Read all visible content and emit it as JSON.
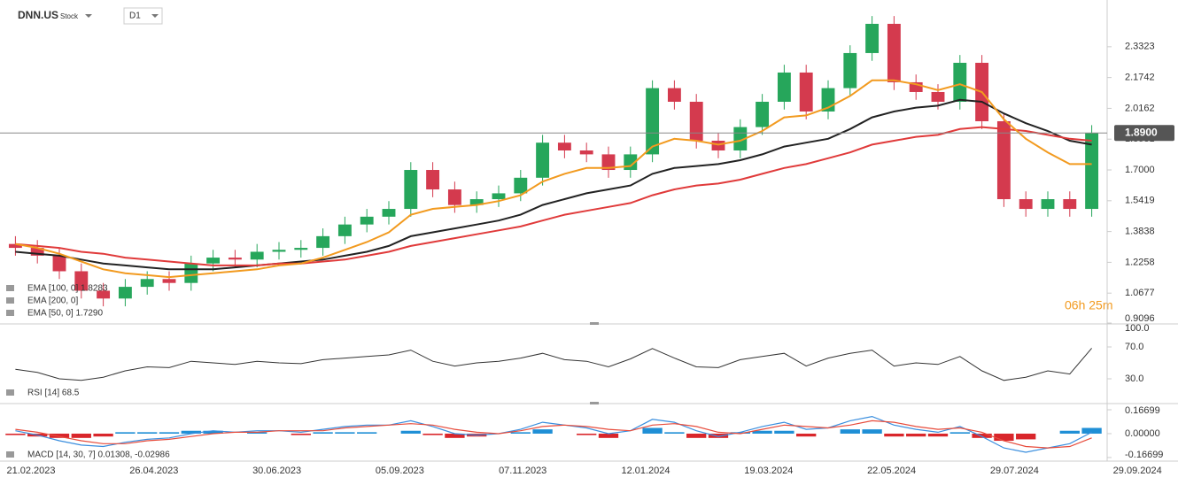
{
  "header": {
    "symbol": "DNN.US",
    "kind": "Stock",
    "timeframe": "D1",
    "countdown": "06h 25m"
  },
  "chart_data": [
    {
      "type": "candlestick",
      "x_axis_labels": [
        "21.02.2023",
        "26.04.2023",
        "30.06.2023",
        "05.09.2023",
        "07.11.2023",
        "12.01.2024",
        "19.03.2024",
        "22.05.2024",
        "29.07.2024",
        "29.09.2024"
      ],
      "open": [
        1.32,
        1.3,
        1.26,
        1.18,
        1.08,
        1.04,
        1.1,
        1.14,
        1.12,
        1.22,
        1.25,
        1.24,
        1.28,
        1.29,
        1.3,
        1.36,
        1.42,
        1.46,
        1.5,
        1.7,
        1.6,
        1.52,
        1.55,
        1.58,
        1.66,
        1.84,
        1.8,
        1.78,
        1.7,
        1.78,
        2.12,
        2.05,
        1.85,
        1.8,
        1.92,
        2.05,
        2.2,
        2.0,
        2.12,
        2.3,
        2.45,
        2.15,
        2.1,
        2.05,
        2.25,
        1.95,
        1.55,
        1.5,
        1.55,
        1.5
      ],
      "high": [
        1.36,
        1.34,
        1.3,
        1.22,
        1.12,
        1.14,
        1.18,
        1.18,
        1.26,
        1.29,
        1.29,
        1.32,
        1.33,
        1.34,
        1.4,
        1.46,
        1.5,
        1.54,
        1.74,
        1.74,
        1.64,
        1.59,
        1.62,
        1.7,
        1.88,
        1.88,
        1.84,
        1.82,
        1.82,
        2.16,
        2.16,
        2.09,
        1.89,
        1.96,
        2.09,
        2.24,
        2.24,
        2.16,
        2.34,
        2.49,
        2.49,
        2.19,
        2.14,
        2.29,
        2.29,
        1.99,
        1.59,
        1.59,
        1.59,
        1.93
      ],
      "low": [
        1.26,
        1.22,
        1.14,
        1.04,
        1.0,
        1.0,
        1.06,
        1.08,
        1.08,
        1.18,
        1.2,
        1.2,
        1.24,
        1.25,
        1.26,
        1.32,
        1.38,
        1.42,
        1.46,
        1.56,
        1.48,
        1.48,
        1.51,
        1.54,
        1.62,
        1.76,
        1.74,
        1.66,
        1.66,
        1.74,
        2.01,
        1.81,
        1.76,
        1.76,
        1.88,
        2.01,
        1.96,
        1.96,
        2.08,
        2.26,
        2.11,
        2.06,
        2.01,
        2.01,
        1.91,
        1.51,
        1.46,
        1.46,
        1.46,
        1.46
      ],
      "close": [
        1.3,
        1.26,
        1.18,
        1.08,
        1.04,
        1.1,
        1.14,
        1.12,
        1.22,
        1.25,
        1.24,
        1.28,
        1.29,
        1.3,
        1.36,
        1.42,
        1.46,
        1.5,
        1.7,
        1.6,
        1.52,
        1.55,
        1.58,
        1.66,
        1.84,
        1.8,
        1.78,
        1.7,
        1.78,
        2.12,
        2.05,
        1.85,
        1.8,
        1.92,
        2.05,
        2.2,
        2.0,
        2.12,
        2.3,
        2.45,
        2.15,
        2.1,
        2.05,
        2.25,
        1.95,
        1.55,
        1.5,
        1.55,
        1.5,
        1.89
      ],
      "up_color": "#26a65b",
      "down_color": "#d43a4e",
      "series": [
        {
          "name": "EMA [100, 0] 1.8283",
          "color": "#222222",
          "values": [
            1.28,
            1.27,
            1.26,
            1.24,
            1.22,
            1.21,
            1.2,
            1.19,
            1.19,
            1.19,
            1.2,
            1.21,
            1.22,
            1.23,
            1.24,
            1.26,
            1.28,
            1.31,
            1.36,
            1.38,
            1.4,
            1.42,
            1.44,
            1.47,
            1.52,
            1.55,
            1.58,
            1.6,
            1.62,
            1.68,
            1.71,
            1.72,
            1.73,
            1.75,
            1.78,
            1.82,
            1.84,
            1.86,
            1.91,
            1.97,
            2.0,
            2.02,
            2.03,
            2.06,
            2.05,
            1.99,
            1.94,
            1.9,
            1.85,
            1.83
          ]
        },
        {
          "name": "EMA [200, 0]",
          "color": "#e03a3a",
          "values": [
            1.32,
            1.31,
            1.3,
            1.28,
            1.27,
            1.25,
            1.24,
            1.23,
            1.22,
            1.21,
            1.21,
            1.21,
            1.22,
            1.22,
            1.23,
            1.24,
            1.26,
            1.28,
            1.31,
            1.33,
            1.35,
            1.37,
            1.39,
            1.41,
            1.44,
            1.47,
            1.49,
            1.51,
            1.53,
            1.57,
            1.6,
            1.62,
            1.63,
            1.65,
            1.68,
            1.71,
            1.73,
            1.76,
            1.79,
            1.83,
            1.85,
            1.87,
            1.88,
            1.91,
            1.92,
            1.91,
            1.9,
            1.88,
            1.86,
            1.85
          ]
        },
        {
          "name": "EMA [50, 0] 1.7290",
          "color": "#f29a1f",
          "values": [
            1.32,
            1.3,
            1.27,
            1.23,
            1.19,
            1.17,
            1.16,
            1.15,
            1.16,
            1.17,
            1.18,
            1.19,
            1.21,
            1.22,
            1.25,
            1.29,
            1.33,
            1.38,
            1.47,
            1.5,
            1.51,
            1.52,
            1.54,
            1.57,
            1.64,
            1.68,
            1.71,
            1.71,
            1.72,
            1.82,
            1.86,
            1.85,
            1.83,
            1.85,
            1.9,
            1.97,
            1.98,
            2.02,
            2.08,
            2.16,
            2.16,
            2.14,
            2.11,
            2.14,
            2.1,
            1.96,
            1.86,
            1.79,
            1.73,
            1.73
          ]
        }
      ],
      "last_price": {
        "value": 1.89,
        "label": "1.8900"
      },
      "ylim": [
        0.9096,
        2.536
      ],
      "yticks": [
        {
          "value": 2.3323,
          "label": "2.3323"
        },
        {
          "value": 2.1742,
          "label": "2.1742"
        },
        {
          "value": 2.0162,
          "label": "2.0162"
        },
        {
          "value": 1.8581,
          "label": "1.8581"
        },
        {
          "value": 1.7,
          "label": "1.7000"
        },
        {
          "value": 1.5419,
          "label": "1.5419"
        },
        {
          "value": 1.3838,
          "label": "1.3838"
        },
        {
          "value": 1.2258,
          "label": "1.2258"
        },
        {
          "value": 1.0677,
          "label": "1.0677"
        },
        {
          "value": 0.9096,
          "label": "0.9096"
        }
      ]
    },
    {
      "type": "line",
      "series": [
        {
          "name": "RSI [14] 68.5",
          "color": "#333333",
          "values": [
            42,
            38,
            30,
            28,
            32,
            40,
            45,
            44,
            52,
            50,
            48,
            52,
            50,
            49,
            54,
            56,
            58,
            60,
            66,
            52,
            46,
            50,
            52,
            56,
            62,
            54,
            52,
            45,
            55,
            68,
            56,
            45,
            44,
            54,
            58,
            62,
            46,
            56,
            62,
            66,
            46,
            50,
            48,
            58,
            40,
            28,
            32,
            40,
            36,
            68.5
          ]
        }
      ],
      "ylim": [
        0,
        100
      ],
      "yticks": [
        {
          "value": 100,
          "label": "100.0"
        },
        {
          "value": 70,
          "label": "70.0"
        },
        {
          "value": 30,
          "label": "30.0"
        }
      ]
    },
    {
      "type": "macd",
      "label": "MACD [14, 30, 7] 0.01308, -0.02986",
      "histogram": {
        "positive_color": "#1f8fd6",
        "negative_color": "#d9262b",
        "values": [
          -0.01,
          -0.02,
          -0.03,
          -0.03,
          -0.02,
          0.01,
          0.01,
          0.01,
          0.02,
          0.02,
          0.0,
          0.01,
          0.0,
          -0.01,
          0.01,
          0.01,
          0.01,
          0.0,
          0.02,
          -0.01,
          -0.03,
          -0.02,
          0.0,
          0.01,
          0.03,
          0.0,
          -0.01,
          -0.03,
          0.0,
          0.04,
          0.01,
          -0.03,
          -0.03,
          0.01,
          0.02,
          0.02,
          -0.02,
          0.0,
          0.03,
          0.03,
          -0.02,
          -0.02,
          -0.02,
          0.01,
          -0.03,
          -0.05,
          -0.04,
          0.0,
          0.02,
          0.04
        ]
      },
      "series": [
        {
          "color": "#3a8ede",
          "values": [
            0.02,
            -0.01,
            -0.05,
            -0.08,
            -0.09,
            -0.06,
            -0.04,
            -0.03,
            0.0,
            0.02,
            0.01,
            0.02,
            0.02,
            0.01,
            0.03,
            0.05,
            0.06,
            0.06,
            0.09,
            0.05,
            0.0,
            -0.01,
            0.0,
            0.03,
            0.08,
            0.06,
            0.04,
            0.0,
            0.02,
            0.1,
            0.08,
            0.02,
            -0.02,
            0.01,
            0.05,
            0.08,
            0.03,
            0.04,
            0.09,
            0.12,
            0.06,
            0.03,
            0.01,
            0.05,
            -0.02,
            -0.1,
            -0.13,
            -0.1,
            -0.07,
            0.01
          ]
        },
        {
          "color": "#e74c3c",
          "values": [
            0.03,
            0.01,
            -0.02,
            -0.05,
            -0.07,
            -0.07,
            -0.05,
            -0.04,
            -0.02,
            0.0,
            0.01,
            0.01,
            0.02,
            0.02,
            0.02,
            0.04,
            0.05,
            0.06,
            0.07,
            0.06,
            0.03,
            0.01,
            0.0,
            0.02,
            0.05,
            0.06,
            0.05,
            0.03,
            0.02,
            0.06,
            0.07,
            0.05,
            0.01,
            0.0,
            0.03,
            0.06,
            0.05,
            0.04,
            0.06,
            0.09,
            0.08,
            0.05,
            0.03,
            0.04,
            0.01,
            -0.05,
            -0.09,
            -0.1,
            -0.09,
            -0.03
          ]
        }
      ],
      "ylim": [
        -0.186,
        0.198
      ],
      "yticks": [
        {
          "value": 0.16699,
          "label": "0.16699"
        },
        {
          "value": 0,
          "label": "0.00000"
        },
        {
          "value": -0.16699,
          "label": "-0.16699"
        }
      ]
    }
  ]
}
